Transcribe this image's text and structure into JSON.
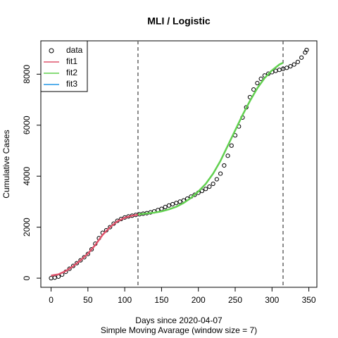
{
  "chart_data": {
    "type": "line",
    "title": "MLI / Logistic",
    "xlabel": "Days since 2020-04-07",
    "subtitle": "Simple Moving Avarage (window size = 7)",
    "ylabel": "Cumulative Cases",
    "xlim": [
      -13.9,
      360.9
    ],
    "ylim": [
      -358,
      9308
    ],
    "xticks": [
      0,
      50,
      100,
      150,
      200,
      250,
      300,
      350
    ],
    "yticks": [
      0,
      2000,
      4000,
      6000,
      8000
    ],
    "vlines": [
      118,
      315
    ],
    "legend": "top-left",
    "series": [
      {
        "name": "data",
        "type": "scatter",
        "color": "#000000",
        "x": [
          0,
          5,
          10,
          15,
          20,
          25,
          30,
          35,
          40,
          45,
          50,
          55,
          60,
          65,
          70,
          75,
          80,
          85,
          90,
          95,
          100,
          105,
          110,
          115,
          120,
          125,
          130,
          135,
          140,
          145,
          150,
          155,
          160,
          165,
          170,
          175,
          180,
          185,
          190,
          195,
          200,
          205,
          210,
          215,
          220,
          225,
          230,
          235,
          240,
          245,
          250,
          255,
          260,
          265,
          270,
          275,
          280,
          285,
          290,
          295,
          300,
          305,
          310,
          315,
          320,
          325,
          330,
          335,
          340,
          345,
          347
        ],
        "values": [
          0,
          20,
          60,
          140,
          250,
          370,
          480,
          590,
          700,
          820,
          950,
          1130,
          1350,
          1570,
          1780,
          1880,
          2000,
          2140,
          2250,
          2320,
          2380,
          2420,
          2450,
          2480,
          2505,
          2530,
          2550,
          2580,
          2620,
          2670,
          2720,
          2790,
          2850,
          2900,
          2950,
          3000,
          3050,
          3120,
          3200,
          3270,
          3350,
          3420,
          3500,
          3590,
          3700,
          3880,
          4100,
          4420,
          4800,
          5200,
          5600,
          5950,
          6300,
          6700,
          7100,
          7400,
          7650,
          7820,
          7950,
          8020,
          8080,
          8130,
          8170,
          8210,
          8250,
          8310,
          8380,
          8480,
          8650,
          8850,
          8950
        ]
      },
      {
        "name": "fit1",
        "type": "line",
        "color": "#DF536B",
        "x": [
          0,
          10,
          20,
          30,
          40,
          50,
          60,
          70,
          80,
          90,
          100,
          110,
          118
        ],
        "values": [
          100,
          150,
          280,
          470,
          700,
          960,
          1300,
          1700,
          2000,
          2230,
          2370,
          2450,
          2490
        ]
      },
      {
        "name": "fit2",
        "type": "line",
        "color": "#61D04F",
        "x": [
          118,
          130,
          140,
          150,
          160,
          170,
          180,
          190,
          200,
          210,
          220,
          230,
          240,
          250,
          260,
          270,
          280,
          290,
          300,
          310,
          315
        ],
        "values": [
          2500,
          2540,
          2570,
          2620,
          2700,
          2800,
          2950,
          3150,
          3400,
          3700,
          4100,
          4600,
          5200,
          5800,
          6400,
          6950,
          7450,
          7850,
          8150,
          8380,
          8450
        ]
      },
      {
        "name": "fit3",
        "type": "line",
        "color": "#2297E6",
        "x": [],
        "values": []
      }
    ]
  }
}
